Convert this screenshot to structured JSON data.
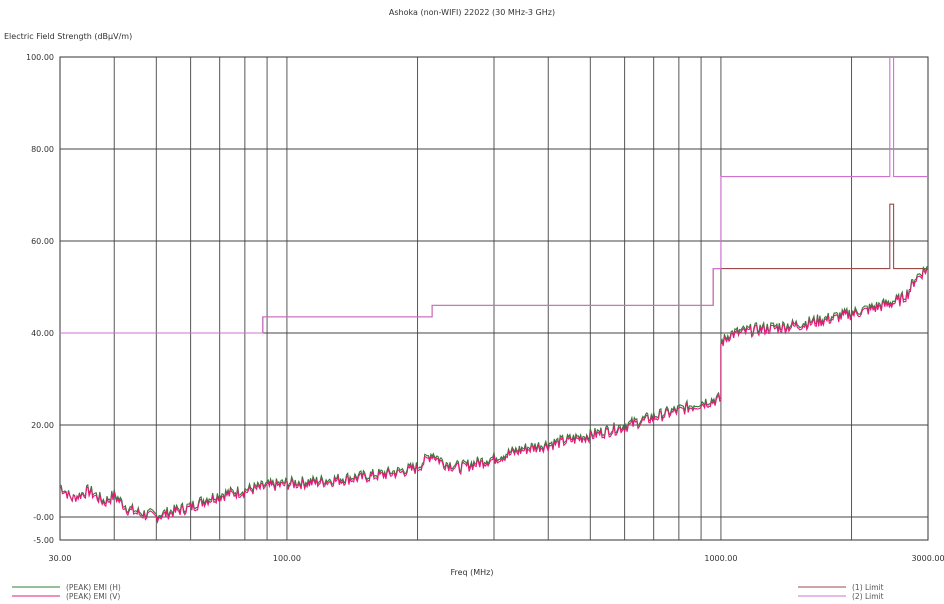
{
  "chart_data": {
    "type": "line",
    "title": "Ashoka (non-WIFI) 22022 (30 MHz-3 GHz)",
    "ylabel": "Electric Field Strength (dBµV/m)",
    "xlabel": "Freq (MHz)",
    "x_scale": "log",
    "xlim": [
      30,
      3000
    ],
    "ylim": [
      -5,
      100
    ],
    "x_ticks": [
      30,
      100,
      1000,
      3000
    ],
    "x_tick_labels": [
      "30.00",
      "100.00",
      "1000.00",
      "3000.00"
    ],
    "y_ticks": [
      -5,
      0,
      20,
      40,
      60,
      80,
      100
    ],
    "y_tick_labels": [
      "-5.00",
      "-0.00",
      "20.00",
      "40.00",
      "60.00",
      "80.00",
      "100.00"
    ],
    "grid": true,
    "series": [
      {
        "name": "(PEAK) EMI (H)",
        "color": "#2e7d32",
        "x": [
          30,
          32,
          35,
          38,
          40,
          43,
          46,
          50,
          55,
          60,
          65,
          70,
          80,
          90,
          100,
          120,
          150,
          180,
          200,
          216,
          230,
          250,
          300,
          350,
          400,
          500,
          600,
          700,
          800,
          900,
          1000,
          1000,
          1050,
          1200,
          1500,
          1800,
          2000,
          2200,
          2400,
          2600,
          2700,
          2800,
          3000
        ],
        "y": [
          7,
          4,
          6,
          3.5,
          5,
          2,
          1,
          0.5,
          1.5,
          2.5,
          4,
          5,
          6,
          7,
          7.5,
          8,
          9,
          10,
          11,
          14,
          12,
          11,
          13,
          15,
          16,
          18,
          20,
          22,
          23.5,
          25,
          26,
          38,
          40,
          41,
          42,
          43.5,
          44.5,
          45.5,
          46.5,
          47.5,
          49,
          52,
          54.5
        ]
      },
      {
        "name": "(PEAK) EMI (V)",
        "color": "#e6197d",
        "x": [
          30,
          32,
          35,
          38,
          40,
          43,
          46,
          50,
          55,
          60,
          65,
          70,
          80,
          90,
          100,
          120,
          150,
          180,
          200,
          216,
          230,
          250,
          300,
          350,
          400,
          500,
          600,
          700,
          800,
          900,
          1000,
          1000,
          1050,
          1200,
          1500,
          1800,
          2000,
          2200,
          2400,
          2600,
          2700,
          2800,
          3000
        ],
        "y": [
          6.5,
          4,
          5.5,
          3,
          4.5,
          1.5,
          0.5,
          0,
          1,
          2,
          3.5,
          4.5,
          5.5,
          6.5,
          7,
          7.5,
          8.5,
          9.5,
          10.5,
          13.5,
          11.5,
          10.5,
          12.5,
          14.5,
          15.5,
          17.5,
          19.5,
          21.5,
          23,
          24.5,
          25.5,
          37.5,
          39.5,
          40.5,
          41.5,
          43,
          44,
          45,
          46,
          47,
          48.5,
          51.5,
          54
        ]
      },
      {
        "name": "(1) Limit",
        "color": "#9c4a4a",
        "x": [
          30,
          88,
          88,
          216,
          216,
          960,
          960,
          2450,
          2450,
          2500,
          2500,
          3000
        ],
        "y": [
          40,
          40,
          43.5,
          43.5,
          46,
          46,
          54,
          54,
          68,
          68,
          54,
          54
        ]
      },
      {
        "name": "(2) Limit",
        "color": "#d070d0",
        "x": [
          30,
          88,
          88,
          216,
          216,
          960,
          960,
          1000,
          1000,
          2450,
          2450,
          2500,
          2500,
          3000
        ],
        "y": [
          40,
          40,
          43.5,
          43.5,
          46,
          46,
          54,
          54,
          74,
          74,
          114,
          114,
          74,
          74
        ]
      }
    ]
  },
  "legend": {
    "left": [
      "(PEAK) EMI (H)",
      "(PEAK) EMI (V)"
    ],
    "right": [
      "(1) Limit",
      "(2) Limit"
    ]
  }
}
